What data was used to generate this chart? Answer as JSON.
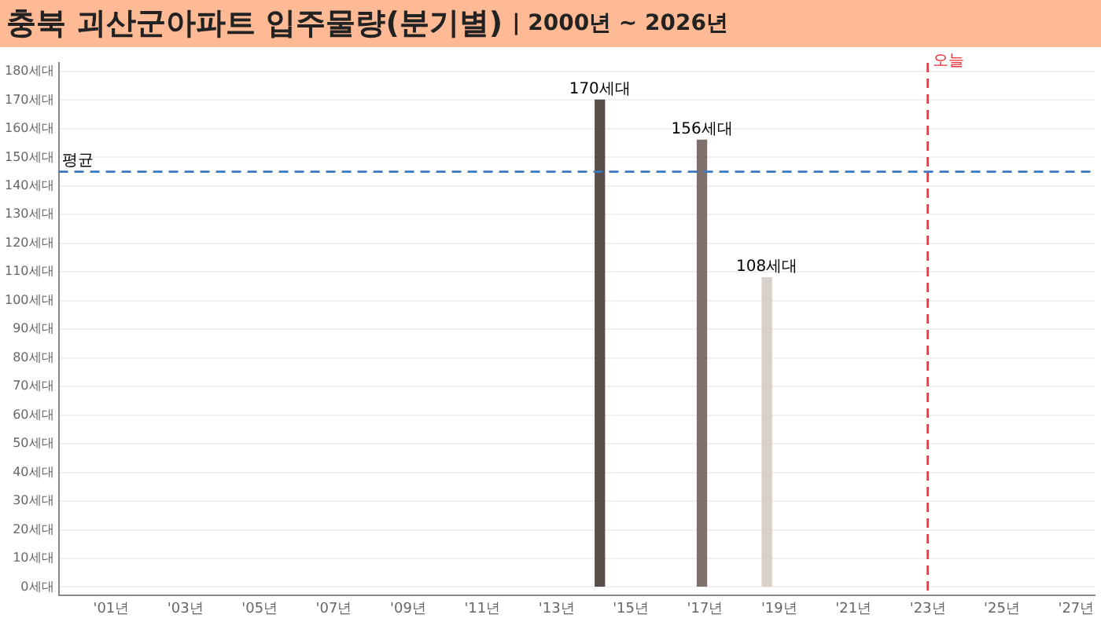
{
  "chart_data": {
    "type": "bar",
    "title": "충북 괴산군아파트 입주물량(분기별)",
    "subtitle": "| 2000년 ~ 2026년",
    "x": [
      "2014-03",
      "2016-12",
      "2018-09"
    ],
    "values": [
      170,
      156,
      108
    ],
    "colors": [
      "#5a4e4a",
      "#7d706d",
      "#d8d0cb"
    ],
    "value_labels": [
      "170세대",
      "156세대",
      "108세대"
    ],
    "xlim": [
      "1999-08",
      "2027-07"
    ],
    "xticks": [
      {
        "value": "2001-01",
        "label": "'01년"
      },
      {
        "value": "2003-01",
        "label": "'03년"
      },
      {
        "value": "2005-01",
        "label": "'05년"
      },
      {
        "value": "2007-01",
        "label": "'07년"
      },
      {
        "value": "2009-01",
        "label": "'09년"
      },
      {
        "value": "2011-01",
        "label": "'11년"
      },
      {
        "value": "2013-01",
        "label": "'13년"
      },
      {
        "value": "2015-01",
        "label": "'15년"
      },
      {
        "value": "2017-01",
        "label": "'17년"
      },
      {
        "value": "2019-01",
        "label": "'19년"
      },
      {
        "value": "2021-01",
        "label": "'21년"
      },
      {
        "value": "2023-01",
        "label": "'23년"
      },
      {
        "value": "2025-01",
        "label": "'25년"
      },
      {
        "value": "2027-01",
        "label": "'27년"
      }
    ],
    "ylim": [
      -3,
      183
    ],
    "yticks": [
      {
        "value": 0,
        "label": "0세대"
      },
      {
        "value": 10,
        "label": "10세대"
      },
      {
        "value": 20,
        "label": "20세대"
      },
      {
        "value": 30,
        "label": "30세대"
      },
      {
        "value": 40,
        "label": "40세대"
      },
      {
        "value": 50,
        "label": "50세대"
      },
      {
        "value": 60,
        "label": "60세대"
      },
      {
        "value": 70,
        "label": "70세대"
      },
      {
        "value": 80,
        "label": "80세대"
      },
      {
        "value": 90,
        "label": "90세대"
      },
      {
        "value": 100,
        "label": "100세대"
      },
      {
        "value": 110,
        "label": "110세대"
      },
      {
        "value": 120,
        "label": "120세대"
      },
      {
        "value": 130,
        "label": "130세대"
      },
      {
        "value": 140,
        "label": "140세대"
      },
      {
        "value": 150,
        "label": "150세대"
      },
      {
        "value": 160,
        "label": "160세대"
      },
      {
        "value": 170,
        "label": "170세대"
      },
      {
        "value": 180,
        "label": "180세대"
      }
    ],
    "ref_lines": [
      {
        "axis": "y",
        "value": 145,
        "label": "평균",
        "color": "#3a78c4",
        "line_style": "dashed"
      },
      {
        "axis": "x",
        "value": "2023-01",
        "label": "오늘",
        "color": "#e8333a",
        "line_style": "dashed"
      }
    ],
    "grid": "y",
    "legend": false
  }
}
